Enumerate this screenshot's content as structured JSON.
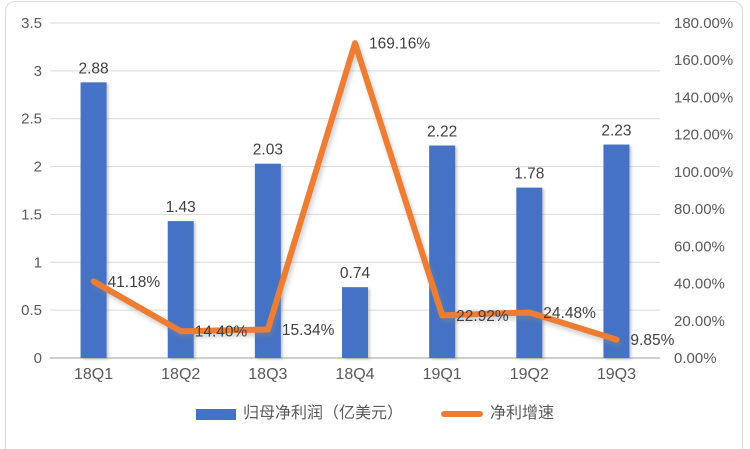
{
  "chart_data": {
    "type": "combo",
    "title": "",
    "categories": [
      "18Q1",
      "18Q2",
      "18Q3",
      "18Q4",
      "19Q1",
      "19Q2",
      "19Q3"
    ],
    "series": [
      {
        "name": "归母净利润（亿美元）",
        "type": "bar",
        "axis": "left",
        "color": "#4472C4",
        "values": [
          2.88,
          1.43,
          2.03,
          0.74,
          2.22,
          1.78,
          2.23
        ],
        "labels": [
          "2.88",
          "1.43",
          "2.03",
          "0.74",
          "2.22",
          "1.78",
          "2.23"
        ]
      },
      {
        "name": "净利增速",
        "type": "line",
        "axis": "right",
        "color": "#ED7D31",
        "values": [
          41.18,
          14.4,
          15.34,
          169.16,
          22.92,
          24.48,
          9.85
        ],
        "labels": [
          "41.18%",
          "14.40%",
          "15.34%",
          "169.16%",
          "22.92%",
          "24.48%",
          "9.85%"
        ]
      }
    ],
    "left_axis": {
      "min": 0,
      "max": 3.5,
      "step": 0.5,
      "ticks": [
        "0",
        "0.5",
        "1",
        "1.5",
        "2",
        "2.5",
        "3",
        "3.5"
      ]
    },
    "right_axis": {
      "min": 0,
      "max": 180,
      "step": 20,
      "ticks": [
        "0.00%",
        "20.00%",
        "40.00%",
        "60.00%",
        "80.00%",
        "100.00%",
        "120.00%",
        "140.00%",
        "160.00%",
        "180.00%"
      ]
    },
    "grid": true,
    "legend_position": "bottom",
    "colors": {
      "bar": "#4472C4",
      "line": "#ED7D31",
      "gridline": "#D9D9D9",
      "axis_line": "#BFBFBF",
      "axis_text": "#595959",
      "data_label": "#404040",
      "background": "#FFFFFF",
      "border": "#D9D9D9"
    }
  }
}
